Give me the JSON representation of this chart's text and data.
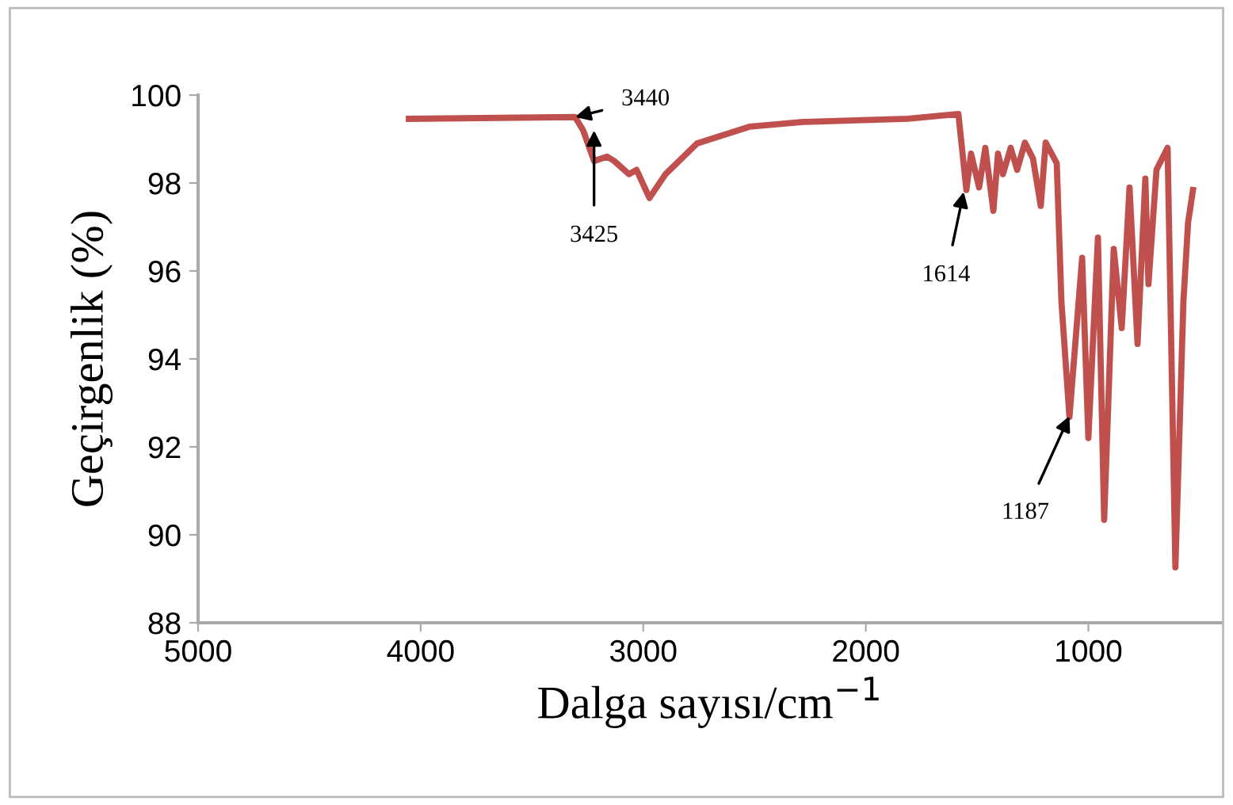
{
  "chart_data": {
    "type": "line",
    "xlabel": "Dalga sayısı/cm$^{−1}$",
    "ylabel": "Geçirgenlik (%)",
    "x": [
      4053,
      3306,
      3270,
      3221,
      3163,
      3130,
      3064,
      3030,
      2972,
      2900,
      2758,
      2523,
      2281,
      1811,
      1584,
      1548,
      1527,
      1491,
      1463,
      1427,
      1406,
      1384,
      1349,
      1320,
      1285,
      1249,
      1214,
      1192,
      1142,
      1121,
      1085,
      1028,
      1000,
      957,
      929,
      886,
      850,
      815,
      779,
      744,
      730,
      694,
      644,
      609,
      573,
      552,
      530
    ],
    "series": [
      {
        "color": "#c0504d",
        "values": [
          99.46,
          99.5,
          99.2,
          98.5,
          98.6,
          98.5,
          98.2,
          98.3,
          97.66,
          98.2,
          98.9,
          99.28,
          99.39,
          99.46,
          99.57,
          97.84,
          98.67,
          97.9,
          98.8,
          97.37,
          98.67,
          98.2,
          98.8,
          98.3,
          98.92,
          98.56,
          97.48,
          98.92,
          98.45,
          95.3,
          92.68,
          96.3,
          92.2,
          96.76,
          90.34,
          96.5,
          94.7,
          97.9,
          94.34,
          98.1,
          95.7,
          98.3,
          98.8,
          89.26,
          95.3,
          97.1,
          97.84
        ]
      }
    ],
    "annotations": [
      {
        "text": "3440",
        "x": 3306,
        "y": 99.5
      },
      {
        "text": "3425",
        "x": 3221,
        "y": 99.2
      },
      {
        "text": "1614",
        "x": 1560,
        "y": 97.8
      },
      {
        "text": "1187",
        "x": 1085,
        "y": 92.7
      }
    ],
    "xlim": [
      5000,
      400
    ],
    "xticks": [
      5000,
      4000,
      3000,
      2000,
      1000
    ],
    "ylim": [
      88,
      100
    ],
    "yticks": [
      88,
      90,
      92,
      94,
      96,
      98,
      100
    ],
    "grid": false,
    "legend": false
  }
}
